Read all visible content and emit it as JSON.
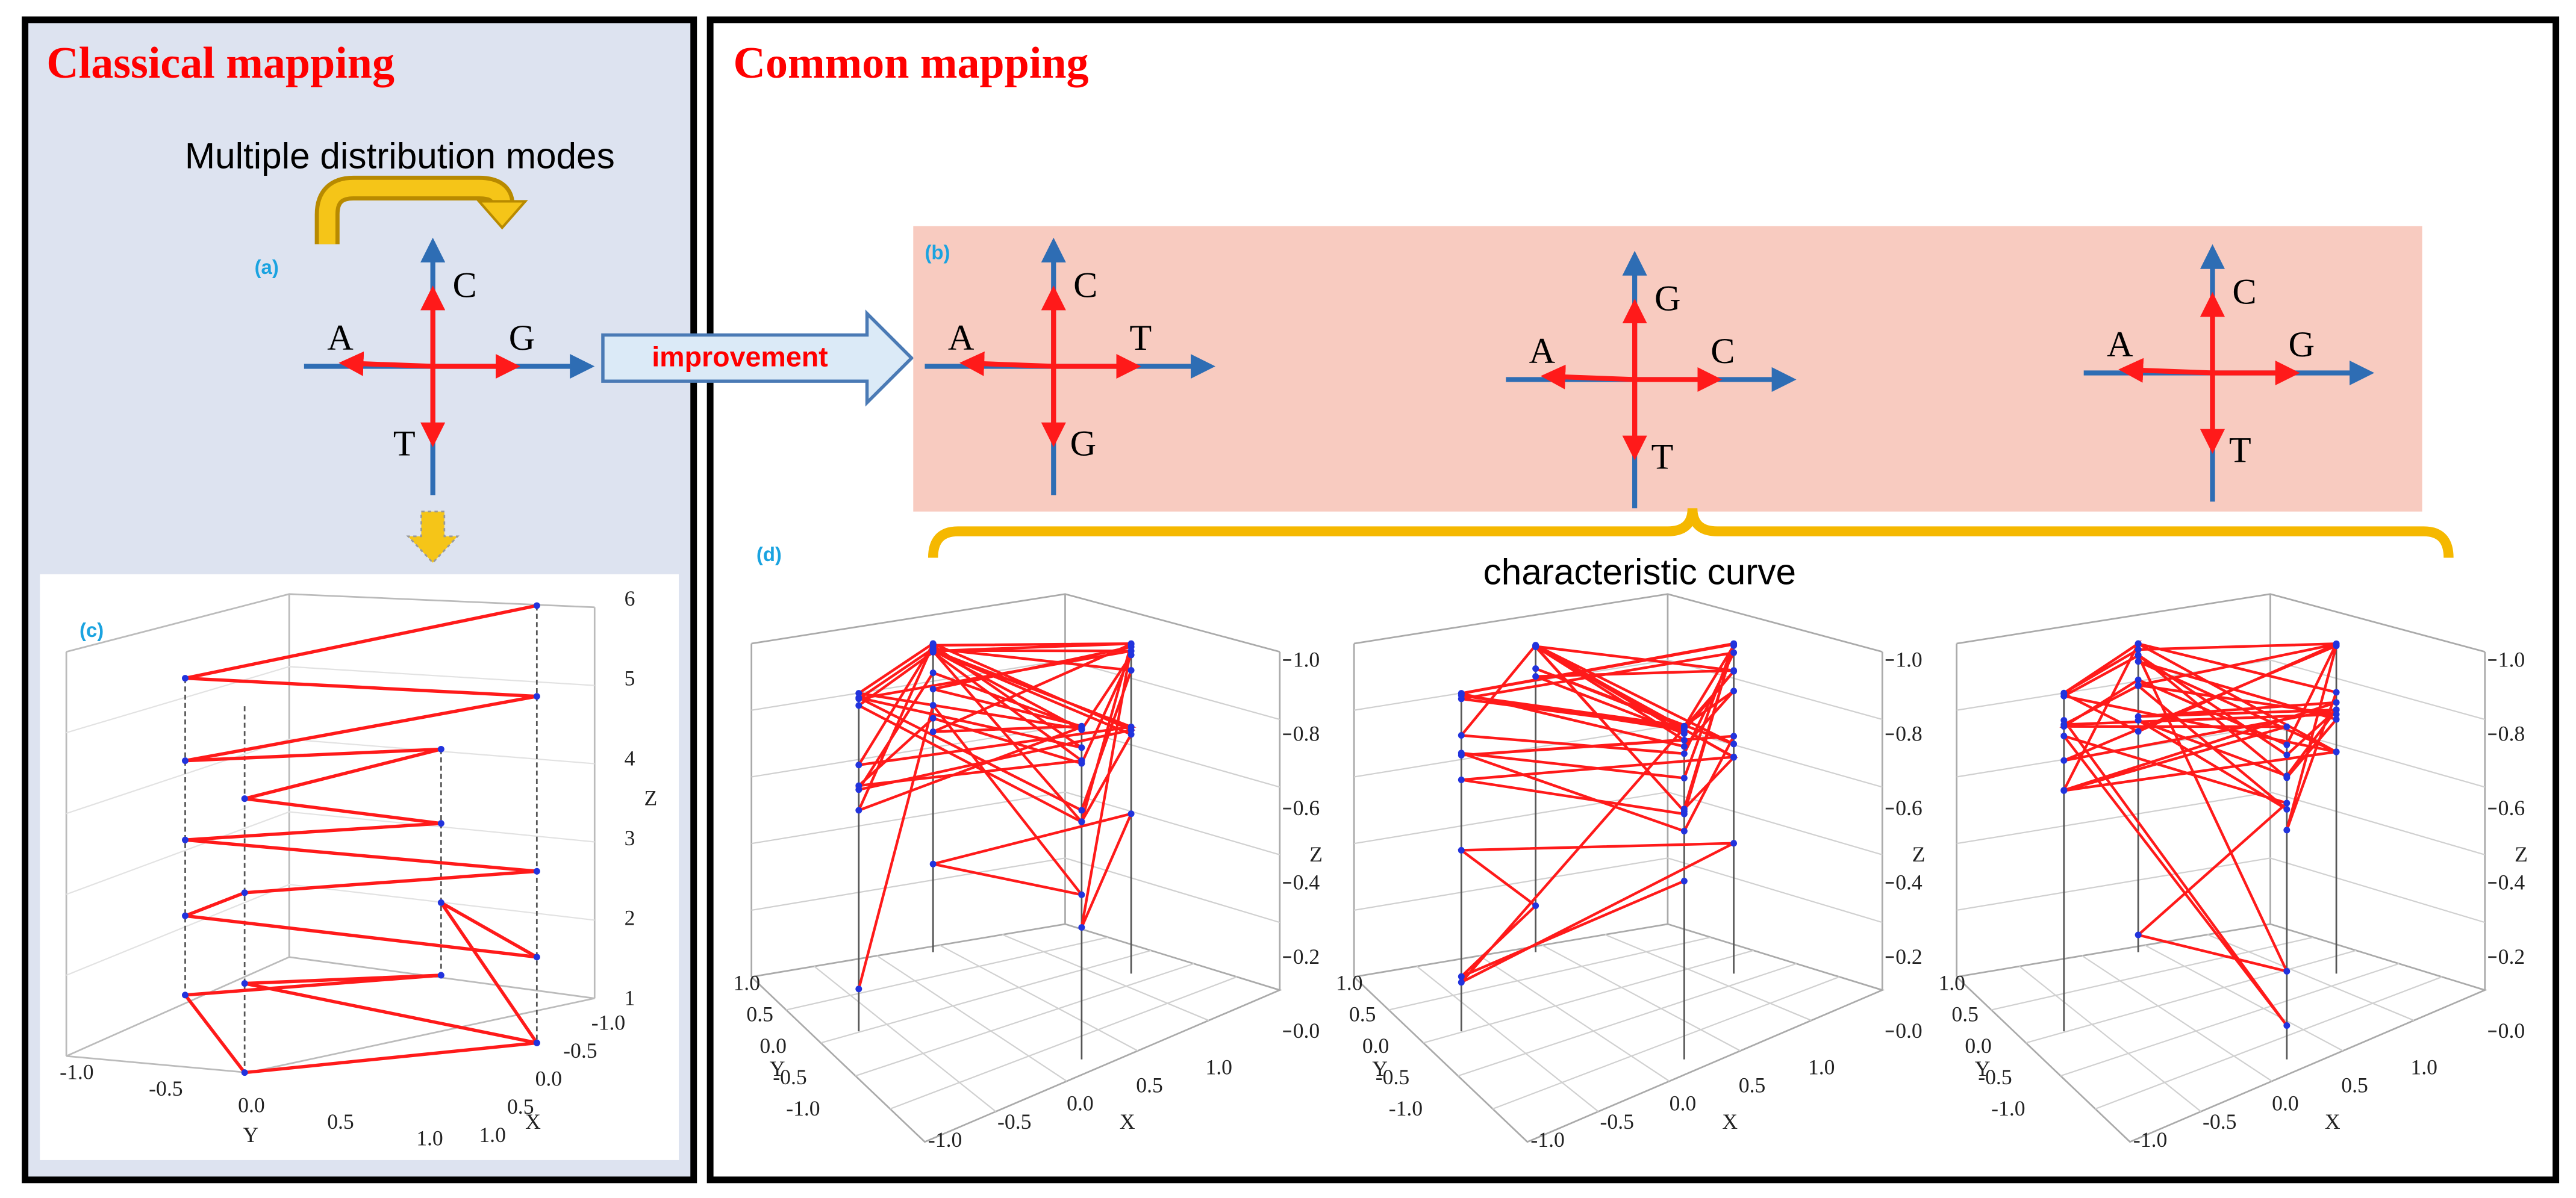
{
  "classical": {
    "title": "Classical mapping",
    "note": "Multiple distribution modes",
    "panel_a": {
      "label": "(a)",
      "top": "C",
      "left": "A",
      "right": "G",
      "bottom": "T"
    },
    "panel_c": {
      "label": "(c)",
      "z_ticks": [
        "1",
        "2",
        "3",
        "4",
        "5",
        "6"
      ],
      "y_ticks": [
        "-1.0",
        "-0.5",
        "0.0",
        "0.5",
        "1.0"
      ],
      "x_ticks": [
        "-1.0",
        "-0.5",
        "0.0",
        "0.5",
        "1.0"
      ],
      "x_label": "X",
      "y_label": "Y",
      "z_label": "Z"
    }
  },
  "arrow_label": "improvement",
  "common": {
    "title": "Common mapping",
    "panel_b": {
      "label": "(b)",
      "crosses": [
        {
          "top": "C",
          "left": "A",
          "right": "T",
          "bottom": "G"
        },
        {
          "top": "G",
          "left": "A",
          "right": "C",
          "bottom": "T"
        },
        {
          "top": "C",
          "left": "A",
          "right": "G",
          "bottom": "T"
        }
      ]
    },
    "panel_d": {
      "label": "(d)",
      "caption": "characteristic curve",
      "plots": [
        {
          "z_ticks": [
            "0.0",
            "0.2",
            "0.4",
            "0.6",
            "0.8",
            "1.0"
          ],
          "y_ticks": [
            "1.0",
            "0.5",
            "0.0",
            "-0.5",
            "-1.0"
          ],
          "x_ticks": [
            "-1.0",
            "-0.5",
            "0.0",
            "0.5",
            "1.0"
          ],
          "x_label": "X",
          "y_label": "Y",
          "z_label": "Z"
        },
        {
          "z_ticks": [
            "0.0",
            "0.2",
            "0.4",
            "0.6",
            "0.8",
            "1.0"
          ],
          "y_ticks": [
            "1.0",
            "0.5",
            "0.0",
            "-0.5",
            "-1.0"
          ],
          "x_ticks": [
            "-1.0",
            "-0.5",
            "0.0",
            "0.5",
            "1.0"
          ],
          "x_label": "X",
          "y_label": "Y",
          "z_label": "Z"
        },
        {
          "z_ticks": [
            "0.0",
            "0.2",
            "0.4",
            "0.6",
            "0.8",
            "1.0"
          ],
          "y_ticks": [
            "1.0",
            "0.5",
            "0.0",
            "-0.5",
            "-1.0"
          ],
          "x_ticks": [
            "-1.0",
            "-0.5",
            "0.0",
            "0.5",
            "1.0"
          ],
          "x_label": "X",
          "y_label": "Y",
          "z_label": "Z"
        }
      ]
    }
  }
}
